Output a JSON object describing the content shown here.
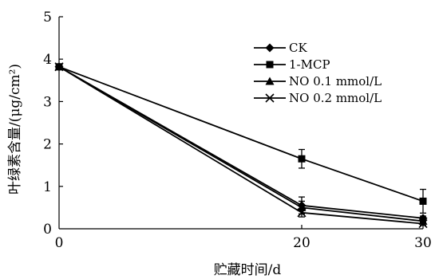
{
  "chart_data": {
    "type": "line",
    "xlabel": "贮藏时间/d",
    "ylabel": "叶绿素含量/(μg/cm²)",
    "x": [
      0,
      20,
      30
    ],
    "xticks": [
      "0",
      "20",
      "30"
    ],
    "yticks": [
      "0",
      "1",
      "2",
      "3",
      "4",
      "5"
    ],
    "xlim": [
      0,
      30
    ],
    "ylim": [
      0,
      5
    ],
    "grid": false,
    "legend_position": "top-right",
    "series": [
      {
        "name": "CK",
        "marker": "diamond",
        "values": [
          3.82,
          0.55,
          0.25
        ],
        "errors": [
          0.0,
          0.2,
          0.05
        ]
      },
      {
        "name": "1-MCP",
        "marker": "square",
        "values": [
          3.82,
          1.65,
          0.65
        ],
        "errors": [
          0.0,
          0.22,
          0.28
        ]
      },
      {
        "name": "NO 0.1 mmol/L",
        "marker": "triangle",
        "values": [
          3.82,
          0.5,
          0.18
        ],
        "errors": [
          0.0,
          0.15,
          0.05
        ]
      },
      {
        "name": "NO 0.2 mmol/L",
        "marker": "x",
        "values": [
          3.82,
          0.38,
          0.12
        ],
        "errors": [
          0.0,
          0.1,
          0.04
        ]
      }
    ]
  }
}
